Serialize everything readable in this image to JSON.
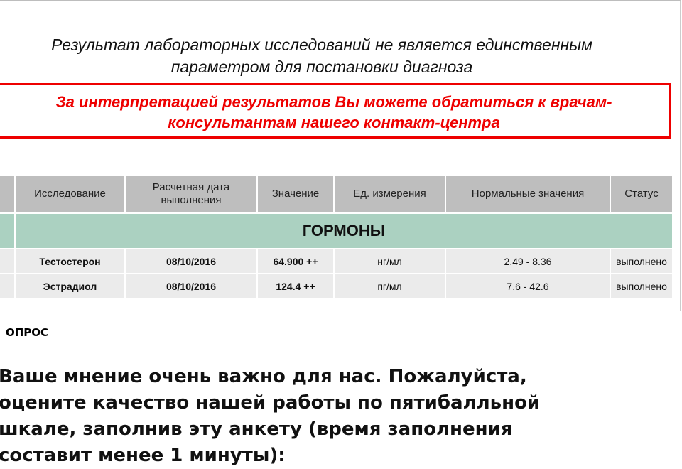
{
  "disclaimer": "Результат лабораторных исследований не является единственным параметром для постановки диагноза",
  "notice": "За интерпретацией результатов Вы можете обратиться к врачам-консультантам нашего контакт-центра",
  "table": {
    "headers": [
      "",
      "Исследование",
      "Расчетная дата выполнения",
      "Значение",
      "Ед. измерения",
      "Нормальные значения",
      "Статус"
    ],
    "group": "ГОРМОНЫ",
    "rows": [
      {
        "test": "Тестостерон",
        "date": "08/10/2016",
        "value": "64.900 ++",
        "unit": "нг/мл",
        "range": "2.49 - 8.36",
        "status": "выполнено"
      },
      {
        "test": "Эстрадиол",
        "date": "08/10/2016",
        "value": "124.4 ++",
        "unit": "пг/мл",
        "range": "7.6 - 42.6",
        "status": "выполнено"
      }
    ]
  },
  "poll": {
    "label": "ОПРОС",
    "text": "Ваше мнение очень важно для нас. Пожалуйста, оцените качество нашей работы по пятибалльной шкале, заполнив эту анкету (время заполнения составит менее 1 минуты):"
  },
  "colors": {
    "notice": "#ee0000",
    "header_bg": "#bebebe",
    "group_bg": "#abd1c1",
    "row_bg": "#ebebeb"
  }
}
